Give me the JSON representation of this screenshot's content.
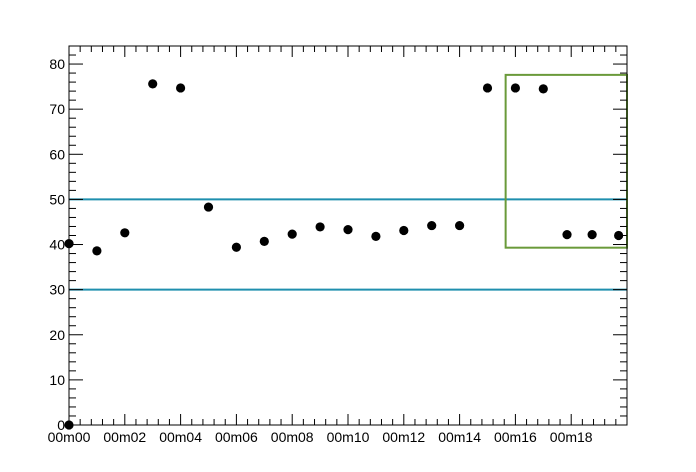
{
  "chart_data": {
    "type": "scatter",
    "title": "",
    "xlabel": "",
    "ylabel": "",
    "xlim": [
      0,
      20
    ],
    "ylim": [
      0,
      84
    ],
    "x_tick_labels": [
      {
        "x": 0,
        "label": "00m00"
      },
      {
        "x": 2,
        "label": "00m02"
      },
      {
        "x": 4,
        "label": "00m04"
      },
      {
        "x": 6,
        "label": "00m06"
      },
      {
        "x": 8,
        "label": "00m08"
      },
      {
        "x": 10,
        "label": "00m10"
      },
      {
        "x": 12,
        "label": "00m12"
      },
      {
        "x": 14,
        "label": "00m14"
      },
      {
        "x": 16,
        "label": "00m16"
      },
      {
        "x": 18,
        "label": "00m18"
      }
    ],
    "y_tick_labels": [
      {
        "y": 0,
        "label": "0"
      },
      {
        "y": 10,
        "label": "10"
      },
      {
        "y": 20,
        "label": "20"
      },
      {
        "y": 30,
        "label": "30"
      },
      {
        "y": 40,
        "label": "40"
      },
      {
        "y": 50,
        "label": "50"
      },
      {
        "y": 60,
        "label": "60"
      },
      {
        "y": 70,
        "label": "70"
      },
      {
        "y": 80,
        "label": "80"
      }
    ],
    "series": [
      {
        "points": [
          {
            "x": 0.0,
            "y": 40.2
          },
          {
            "x": 1.0,
            "y": 38.6
          },
          {
            "x": 2.0,
            "y": 42.6
          },
          {
            "x": 3.0,
            "y": 75.6
          },
          {
            "x": 4.0,
            "y": 74.7
          },
          {
            "x": 5.0,
            "y": 48.3
          },
          {
            "x": 6.0,
            "y": 39.4
          },
          {
            "x": 7.0,
            "y": 40.7
          },
          {
            "x": 8.0,
            "y": 42.3
          },
          {
            "x": 9.0,
            "y": 43.9
          },
          {
            "x": 10.0,
            "y": 43.3
          },
          {
            "x": 11.0,
            "y": 41.8
          },
          {
            "x": 12.0,
            "y": 43.1
          },
          {
            "x": 13.0,
            "y": 44.2
          },
          {
            "x": 14.0,
            "y": 44.2
          },
          {
            "x": 15.0,
            "y": 74.7
          },
          {
            "x": 16.0,
            "y": 74.7
          },
          {
            "x": 17.0,
            "y": 74.5
          },
          {
            "x": 17.85,
            "y": 42.2
          },
          {
            "x": 18.75,
            "y": 42.2
          },
          {
            "x": 19.7,
            "y": 42.0
          },
          {
            "x": 0.0,
            "y": 0.0
          }
        ],
        "color": "#000000"
      }
    ],
    "reference_lines": [
      {
        "y": 50,
        "color": "#1f8fae"
      },
      {
        "y": 30,
        "color": "#1f8fae"
      }
    ],
    "highlight_box": {
      "x0": 15.65,
      "x1": 20.0,
      "y0": 39.3,
      "y1": 77.6,
      "color": "#6a9a3a"
    },
    "grid": false,
    "legend": "none"
  }
}
